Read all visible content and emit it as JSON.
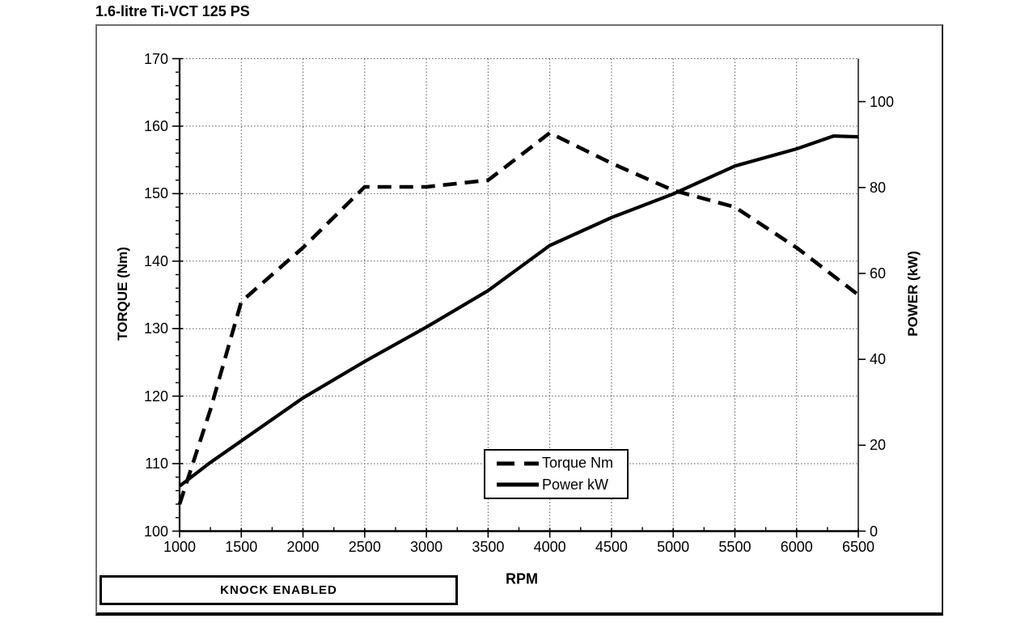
{
  "chart_data": {
    "type": "line",
    "title": "1.6-litre Ti-VCT 125 PS",
    "xlabel": "RPM",
    "xlim": [
      1000,
      6500
    ],
    "x_ticks": [
      1000,
      1500,
      2000,
      2500,
      3000,
      3500,
      4000,
      4500,
      5000,
      5500,
      6000,
      6500
    ],
    "x_minor_tick_step": 250,
    "grid": true,
    "gridline_style": "dotted",
    "y_left": {
      "label": "TORQUE (Nm)",
      "lim": [
        100,
        170
      ],
      "ticks": [
        100,
        110,
        120,
        130,
        140,
        150,
        160,
        170
      ],
      "minor_tick_step": 2
    },
    "y_right": {
      "label": "POWER (kW)",
      "lim": [
        0,
        110
      ],
      "ticks": [
        0,
        20,
        40,
        60,
        80,
        100
      ]
    },
    "legend": {
      "position": "inside-bottom-center"
    },
    "series": [
      {
        "name": "Torque Nm",
        "axis": "left",
        "line_style": "dashed",
        "color": "#000000",
        "points": [
          [
            1000,
            104
          ],
          [
            1250,
            118
          ],
          [
            1500,
            134
          ],
          [
            2000,
            142
          ],
          [
            2500,
            151
          ],
          [
            3000,
            151
          ],
          [
            3500,
            152
          ],
          [
            4000,
            159
          ],
          [
            4500,
            154.5
          ],
          [
            5000,
            150.5
          ],
          [
            5500,
            148
          ],
          [
            6000,
            142
          ],
          [
            6500,
            135
          ]
        ]
      },
      {
        "name": "Power kW",
        "axis": "right",
        "line_style": "solid",
        "color": "#000000",
        "points": [
          [
            1000,
            10.5
          ],
          [
            1250,
            16
          ],
          [
            1500,
            21
          ],
          [
            2000,
            31
          ],
          [
            2500,
            39.5
          ],
          [
            3000,
            47.5
          ],
          [
            3500,
            56
          ],
          [
            4000,
            66.5
          ],
          [
            4500,
            73
          ],
          [
            5000,
            78.5
          ],
          [
            5500,
            85
          ],
          [
            6000,
            89
          ],
          [
            6300,
            92
          ],
          [
            6500,
            91.8
          ]
        ]
      }
    ]
  },
  "annotations": {
    "knock_box": "KNOCK ENABLED"
  },
  "colors": {
    "line": "#000000",
    "grid": "#5a5a5a",
    "background": "#ffffff",
    "frame_border": "#6e6e6e"
  }
}
